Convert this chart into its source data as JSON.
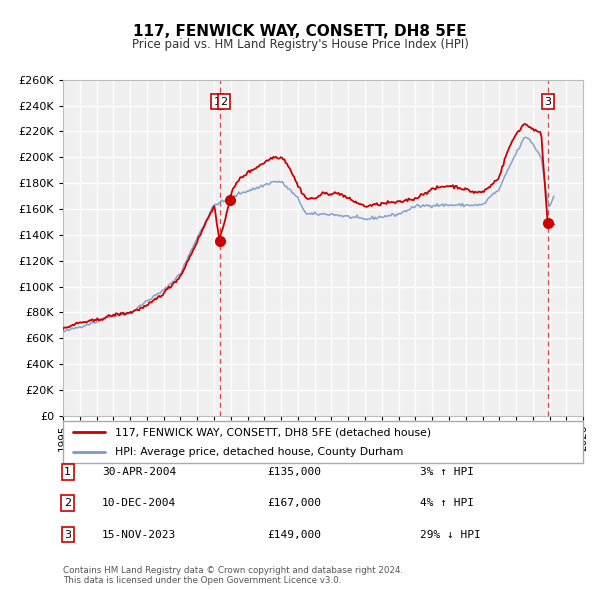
{
  "title": "117, FENWICK WAY, CONSETT, DH8 5FE",
  "subtitle": "Price paid vs. HM Land Registry's House Price Index (HPI)",
  "hpi_color": "#7799cc",
  "price_color": "#cc0000",
  "background_color": "#f0f0f0",
  "grid_color": "#ffffff",
  "ylim": [
    0,
    260000
  ],
  "yticks": [
    0,
    20000,
    40000,
    60000,
    80000,
    100000,
    120000,
    140000,
    160000,
    180000,
    200000,
    220000,
    240000,
    260000
  ],
  "xlim": [
    1995,
    2026
  ],
  "transaction_dates": [
    2004.33,
    2004.94,
    2023.88
  ],
  "transaction_prices": [
    135000,
    167000,
    149000
  ],
  "vline_dates": [
    2004.38,
    2023.91
  ],
  "legend_label_price": "117, FENWICK WAY, CONSETT, DH8 5FE (detached house)",
  "legend_label_hpi": "HPI: Average price, detached house, County Durham",
  "table_entries": [
    {
      "num": "1",
      "date": "30-APR-2004",
      "price": "£135,000",
      "pct": "3%",
      "dir": "↑",
      "vs": "HPI"
    },
    {
      "num": "2",
      "date": "10-DEC-2004",
      "price": "£167,000",
      "pct": "4%",
      "dir": "↑",
      "vs": "HPI"
    },
    {
      "num": "3",
      "date": "15-NOV-2023",
      "price": "£149,000",
      "pct": "29%",
      "dir": "↓",
      "vs": "HPI"
    }
  ],
  "footer": "Contains HM Land Registry data © Crown copyright and database right 2024.\nThis data is licensed under the Open Government Licence v3.0."
}
